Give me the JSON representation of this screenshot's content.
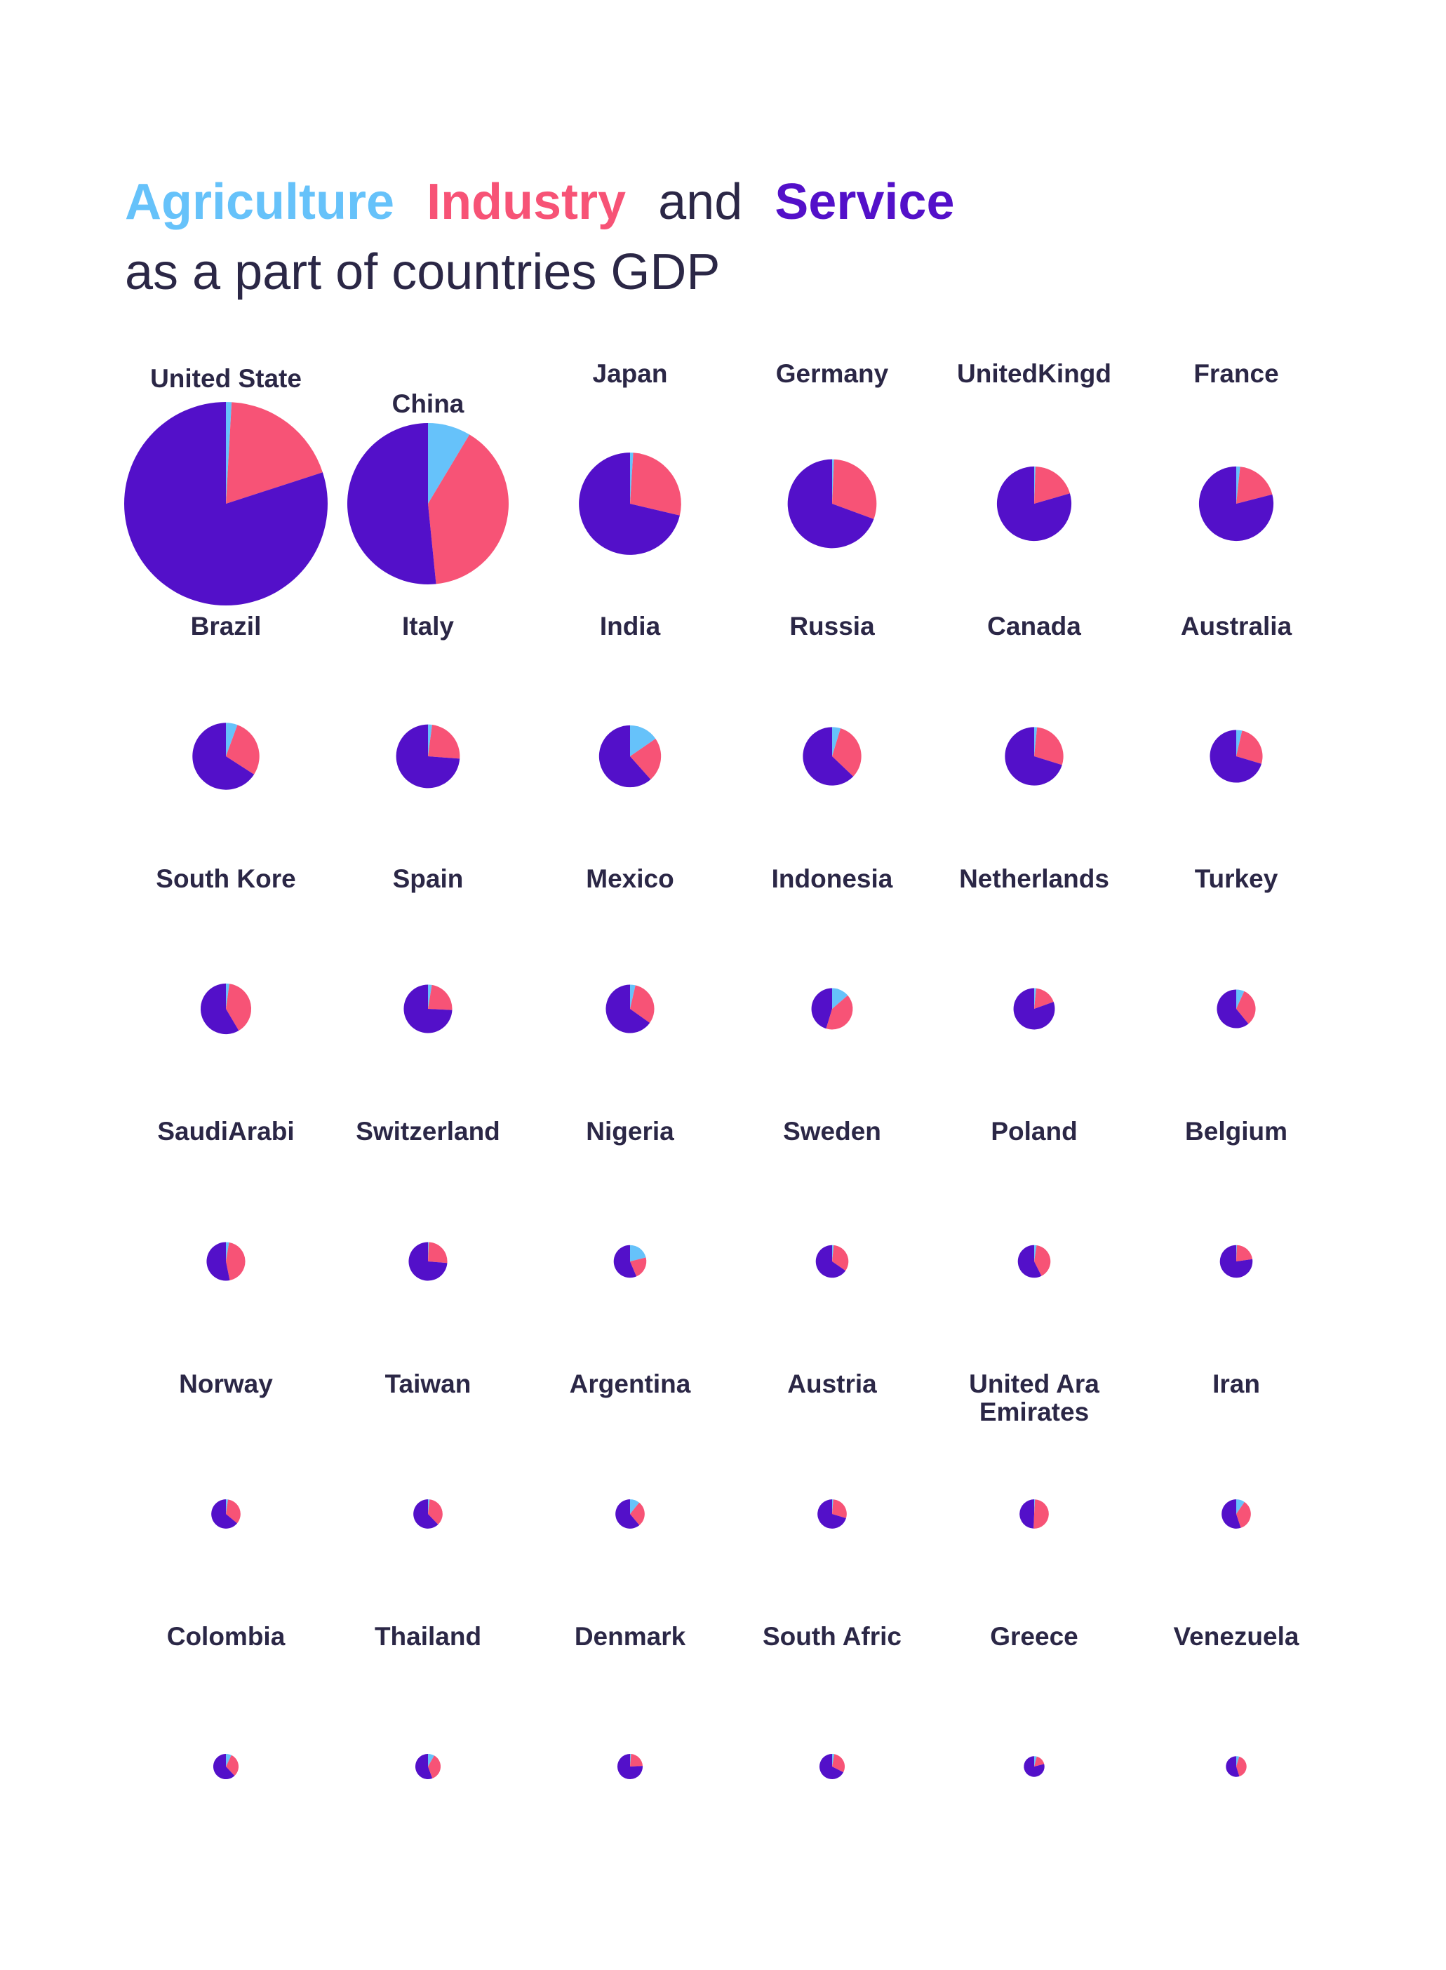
{
  "title": {
    "line1": [
      {
        "text": "Agriculture",
        "role": "agriculture"
      },
      {
        "text": "Industry",
        "role": "industry"
      },
      {
        "text": "and",
        "role": "plain"
      },
      {
        "text": "Service",
        "role": "service"
      }
    ],
    "line2": "as a part of countries GDP"
  },
  "colors": {
    "agriculture": "#66c2fa",
    "industry": "#f75376",
    "service": "#5310c9",
    "text": "#2b2746",
    "background": "#ffffff"
  },
  "chart_data": {
    "type": "pie",
    "series_names": [
      "Agriculture",
      "Industry",
      "Service"
    ],
    "countries": [
      {
        "label": "United State",
        "agriculture": 0.9,
        "industry": 19.1,
        "service": 80.0,
        "size": 19.4
      },
      {
        "label": "China",
        "agriculture": 8.6,
        "industry": 39.8,
        "service": 51.6,
        "size": 12.2
      },
      {
        "label": "Japan",
        "agriculture": 1.0,
        "industry": 27.7,
        "service": 71.3,
        "size": 4.9
      },
      {
        "label": "Germany",
        "agriculture": 0.7,
        "industry": 29.9,
        "service": 69.4,
        "size": 3.7
      },
      {
        "label": "UnitedKingd",
        "agriculture": 0.6,
        "industry": 19.9,
        "service": 79.5,
        "size": 2.6
      },
      {
        "label": "France",
        "agriculture": 1.7,
        "industry": 19.3,
        "service": 79.0,
        "size": 2.6
      },
      {
        "label": "Brazil",
        "agriculture": 5.6,
        "industry": 28.5,
        "service": 65.9,
        "size": 2.1
      },
      {
        "label": "Italy",
        "agriculture": 2.1,
        "industry": 24.1,
        "service": 73.8,
        "size": 1.9
      },
      {
        "label": "India",
        "agriculture": 15.4,
        "industry": 23.0,
        "service": 61.6,
        "size": 1.8
      },
      {
        "label": "Russia",
        "agriculture": 4.7,
        "industry": 32.4,
        "service": 62.9,
        "size": 1.6
      },
      {
        "label": "Canada",
        "agriculture": 1.6,
        "industry": 28.2,
        "service": 70.2,
        "size": 1.6
      },
      {
        "label": "Australia",
        "agriculture": 3.6,
        "industry": 26.0,
        "service": 70.4,
        "size": 1.3
      },
      {
        "label": "South Kore",
        "agriculture": 2.2,
        "industry": 39.3,
        "service": 58.5,
        "size": 1.2
      },
      {
        "label": "Spain",
        "agriculture": 2.6,
        "industry": 23.2,
        "service": 74.2,
        "size": 1.1
      },
      {
        "label": "Mexico",
        "agriculture": 3.6,
        "industry": 31.2,
        "service": 65.2,
        "size": 1.1
      },
      {
        "label": "Indonesia",
        "agriculture": 13.7,
        "industry": 41.0,
        "service": 45.3,
        "size": 0.8
      },
      {
        "label": "Netherlands",
        "agriculture": 1.6,
        "industry": 17.9,
        "service": 80.5,
        "size": 0.8
      },
      {
        "label": "Turkey",
        "agriculture": 6.8,
        "industry": 32.3,
        "service": 60.9,
        "size": 0.7
      },
      {
        "label": "SaudiArabi",
        "agriculture": 2.6,
        "industry": 44.2,
        "service": 53.2,
        "size": 0.7
      },
      {
        "label": "Switzerland",
        "agriculture": 0.7,
        "industry": 25.6,
        "service": 73.7,
        "size": 0.7
      },
      {
        "label": "Nigeria",
        "agriculture": 21.1,
        "industry": 22.5,
        "service": 56.4,
        "size": 0.5
      },
      {
        "label": "Sweden",
        "agriculture": 1.6,
        "industry": 33.0,
        "service": 65.4,
        "size": 0.5
      },
      {
        "label": "Poland",
        "agriculture": 2.4,
        "industry": 40.2,
        "service": 57.4,
        "size": 0.5
      },
      {
        "label": "Belgium",
        "agriculture": 0.7,
        "industry": 22.1,
        "service": 77.2,
        "size": 0.5
      },
      {
        "label": "Norway",
        "agriculture": 2.3,
        "industry": 33.7,
        "service": 64.0,
        "size": 0.4
      },
      {
        "label": "Taiwan",
        "agriculture": 1.8,
        "industry": 36.0,
        "service": 62.2,
        "size": 0.4
      },
      {
        "label": "Argentina",
        "agriculture": 10.8,
        "industry": 28.1,
        "service": 61.1,
        "size": 0.4
      },
      {
        "label": "Austria",
        "agriculture": 1.3,
        "industry": 28.4,
        "service": 70.3,
        "size": 0.4
      },
      {
        "label": "United Ara Emirates",
        "agriculture": 0.9,
        "industry": 49.8,
        "service": 49.3,
        "size": 0.4
      },
      {
        "label": "Iran",
        "agriculture": 9.6,
        "industry": 35.3,
        "service": 55.1,
        "size": 0.4
      },
      {
        "label": "Colombia",
        "agriculture": 7.2,
        "industry": 30.8,
        "service": 62.0,
        "size": 0.3
      },
      {
        "label": "Thailand",
        "agriculture": 8.2,
        "industry": 36.2,
        "service": 55.6,
        "size": 0.3
      },
      {
        "label": "Denmark",
        "agriculture": 1.3,
        "industry": 22.9,
        "service": 75.8,
        "size": 0.3
      },
      {
        "label": "South Afric",
        "agriculture": 2.8,
        "industry": 29.7,
        "service": 67.5,
        "size": 0.3
      },
      {
        "label": "Greece",
        "agriculture": 4.1,
        "industry": 16.9,
        "service": 79.0,
        "size": 0.2
      },
      {
        "label": "Venezuela",
        "agriculture": 4.7,
        "industry": 40.4,
        "service": 54.9,
        "size": 0.2
      }
    ]
  }
}
